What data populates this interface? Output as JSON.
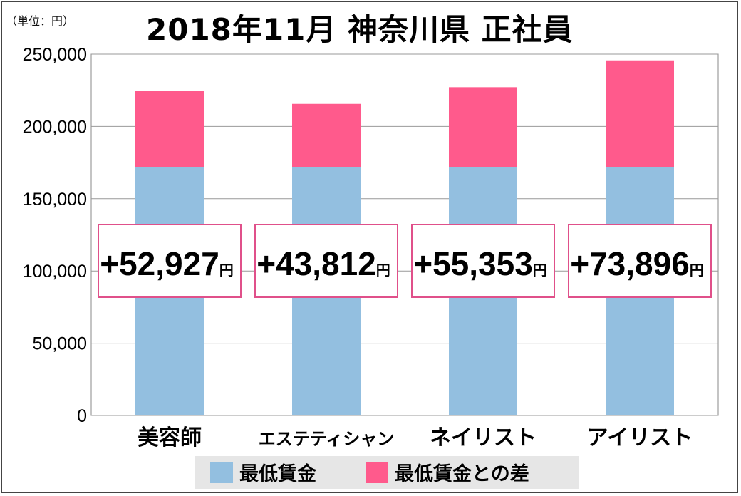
{
  "unit_label": "（単位：円）",
  "title": "2018年11月 神奈川県 正社員",
  "chart_data": {
    "type": "bar",
    "stacked": true,
    "categories": [
      "美容師",
      "エステティシャン",
      "ネイリスト",
      "アイリスト"
    ],
    "series": [
      {
        "name": "最低賃金",
        "color": "#93bfe0",
        "values": [
          171792,
          171792,
          171792,
          171792
        ]
      },
      {
        "name": "最低賃金との差",
        "color": "#ff5a8c",
        "values": [
          52927,
          43812,
          55353,
          73896
        ]
      }
    ],
    "difference_labels": [
      "+52,927",
      "+43,812",
      "+55,353",
      "+73,896"
    ],
    "difference_unit": "円",
    "ylim": [
      0,
      250000
    ],
    "yticks": [
      "0",
      "50,000",
      "100,000",
      "150,000",
      "200,000",
      "250,000"
    ],
    "grid": true,
    "legend_position": "bottom",
    "xlabel": "",
    "ylabel": ""
  }
}
